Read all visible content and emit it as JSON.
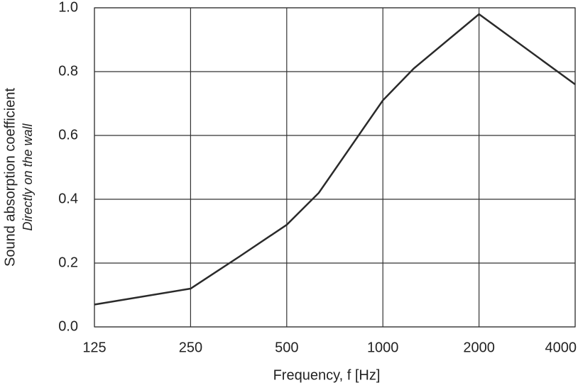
{
  "chart_data": {
    "type": "line",
    "y_label": "Sound absorption coefficient",
    "y_sublabel": "Directly on the wall",
    "x_label": "Frequency, f [Hz]",
    "x": [
      125,
      250,
      355,
      500,
      630,
      1000,
      1250,
      2000,
      4000
    ],
    "series": [
      {
        "color": "#2a2a2a",
        "values": [
          0.07,
          0.12,
          0.22,
          0.32,
          0.42,
          0.71,
          0.81,
          0.98,
          0.76
        ]
      }
    ],
    "xscale": "log",
    "xlim": [
      125,
      4000
    ],
    "xticks": [
      125,
      250,
      500,
      1000,
      2000,
      4000
    ],
    "ylim": [
      0,
      1
    ],
    "yticks": [
      {
        "value": 0,
        "label": "0.0"
      },
      0.2,
      0.4,
      0.6,
      0.8,
      {
        "value": 1,
        "label": "1.0"
      }
    ],
    "grid": true
  }
}
